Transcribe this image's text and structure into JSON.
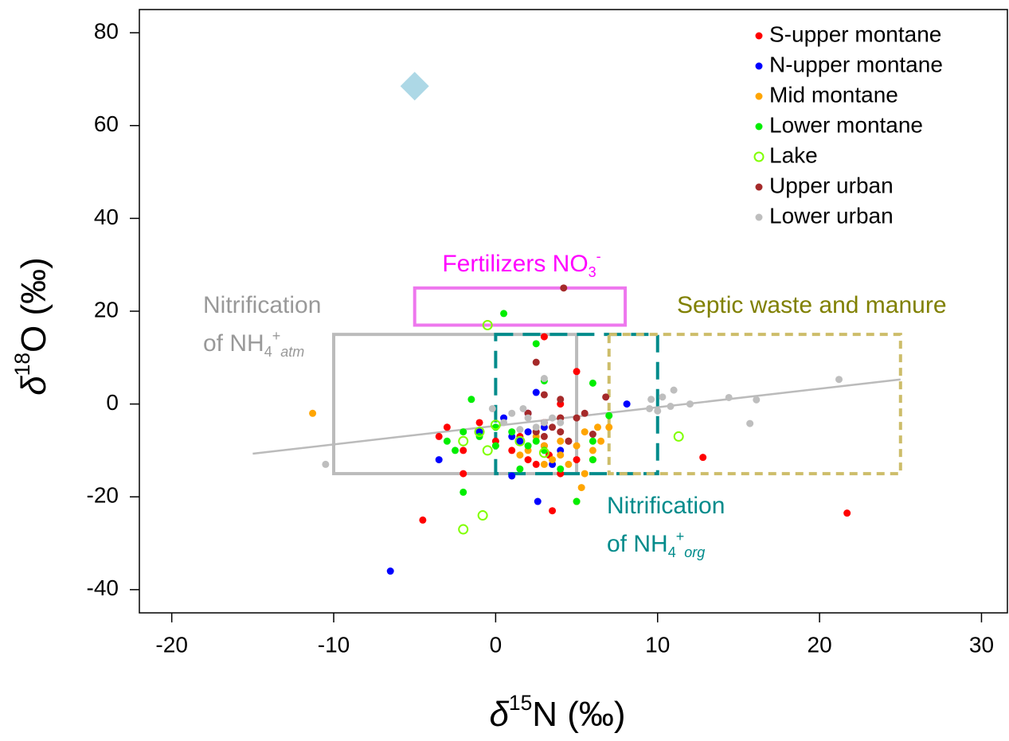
{
  "chart_data": {
    "type": "scatter",
    "x_label": [
      {
        "t": "δ",
        "style": "italic"
      },
      {
        "t": "15",
        "style": "sup"
      },
      {
        "t": "N (‰)"
      }
    ],
    "y_label": [
      {
        "t": "δ",
        "style": "italic"
      },
      {
        "t": "18",
        "style": "sup"
      },
      {
        "t": "O (‰)"
      }
    ],
    "xlim": [
      -22,
      31.6
    ],
    "ylim": [
      -45,
      85
    ],
    "xticks": [
      -20,
      -10,
      0,
      10,
      20,
      30
    ],
    "yticks": [
      -40,
      -20,
      0,
      20,
      40,
      60,
      80
    ],
    "legend": "top-right",
    "series": [
      {
        "name": "S-upper montane",
        "color": "#ff0000",
        "marker": "filled",
        "x": [
          -4.5,
          21.7,
          12.8,
          3,
          5,
          2.5,
          3.5,
          -2,
          -3.5,
          -3,
          -1,
          0,
          1,
          2,
          3,
          4,
          4.5,
          3,
          2,
          4,
          1.5,
          -2,
          3.3,
          5,
          4
        ],
        "values": [
          -25,
          -23.5,
          -11.5,
          14.5,
          7,
          -13,
          -23,
          -15,
          -7,
          -5,
          -4,
          -8,
          -10,
          -12,
          -9,
          -15,
          -8,
          -4,
          -2,
          0,
          -7,
          -10,
          -11,
          -12,
          -3
        ]
      },
      {
        "name": "N-upper montane",
        "color": "#0000ff",
        "marker": "filled",
        "x": [
          -6.5,
          8.1,
          -3.5,
          1,
          2,
          2.5,
          1.5,
          3,
          4,
          2,
          -1,
          0.5,
          2.6,
          1,
          3.5
        ],
        "values": [
          -36,
          0,
          -12,
          -7,
          -2,
          2.5,
          -8,
          -5,
          -10,
          -6,
          -6,
          -3,
          -21,
          -15.5,
          -13
        ]
      },
      {
        "name": "Mid montane",
        "color": "#ffa500",
        "marker": "filled",
        "x": [
          -11.3,
          5,
          5.3,
          5.5,
          6,
          6.5,
          7,
          6,
          5,
          4,
          3,
          2,
          3,
          4.5,
          5.5,
          2.5,
          3.5,
          6.3,
          1.5,
          4
        ],
        "values": [
          -2,
          -21,
          -18,
          -15,
          -12,
          -8,
          -5,
          -10,
          -9,
          -11,
          -9,
          -10,
          -13,
          -13,
          -6,
          -7,
          -12,
          -5,
          -11,
          -8
        ]
      },
      {
        "name": "Lower montane",
        "color": "#00ee00",
        "marker": "filled",
        "x": [
          0.5,
          2.5,
          -2,
          -1.5,
          3,
          6,
          7,
          -3,
          -2,
          -1,
          0,
          1,
          2,
          3,
          4,
          5,
          6,
          -2.5,
          1.5,
          6,
          0,
          2.5
        ],
        "values": [
          19.5,
          13,
          -19,
          1,
          5,
          4.5,
          -2.5,
          -8,
          -6,
          -7,
          -5,
          -6,
          -9,
          -10,
          -14,
          -21,
          -12,
          -10,
          -14,
          -8,
          -9,
          -8
        ]
      },
      {
        "name": "Lake",
        "color": "#80ff00",
        "marker": "open",
        "x": [
          -0.5,
          -2,
          -0.8,
          11.3,
          -2,
          -1,
          0,
          3,
          1.5,
          -0.5
        ],
        "values": [
          17,
          -27,
          -24,
          -7,
          -8,
          -6,
          -4.5,
          -10.5,
          -8,
          -10
        ]
      },
      {
        "name": "Upper urban",
        "color": "#a52a2a",
        "marker": "filled",
        "x": [
          4.2,
          6.8,
          3,
          4,
          2,
          3,
          4,
          5,
          4.5,
          3.5,
          2.5,
          5.5,
          4,
          3,
          6,
          2.5
        ],
        "values": [
          25,
          1.5,
          2,
          1,
          -2,
          -4,
          -6,
          -3,
          -8,
          -5,
          -6,
          -2,
          -3,
          -7,
          -6.5,
          9
        ]
      },
      {
        "name": "Lower urban",
        "color": "#bebebe",
        "marker": "filled",
        "x": [
          -10.5,
          21.2,
          16.1,
          15.7,
          14.4,
          12,
          11,
          10.3,
          9.6,
          10,
          10.8,
          9.5,
          3,
          1.7,
          2,
          3,
          1,
          -0.2,
          4,
          2.5,
          1.5,
          0.5,
          3.5
        ],
        "values": [
          -13,
          5.3,
          0.9,
          -4.2,
          1.4,
          0,
          3,
          1.5,
          1,
          -1.5,
          -0.5,
          -1,
          5.5,
          -1,
          -3,
          -4,
          -2,
          -1,
          -4,
          -5,
          -5.5,
          -4,
          -3
        ]
      }
    ],
    "marker_point": {
      "x": -5,
      "y": 68.5,
      "color": "#add8e6",
      "shape": "diamond"
    },
    "trend_line": {
      "x": [
        -15,
        25
      ],
      "y": [
        -10.7,
        5.3
      ],
      "color": "#bbbbbb"
    },
    "regions": [
      {
        "x": [
          -10,
          5
        ],
        "y": [
          -15,
          15
        ],
        "color": "#bbbbbb",
        "dash": "solid",
        "text_color": "#999999",
        "label": [
          [
            {
              "t": "Nitrification"
            }
          ],
          [
            {
              "t": "of NH"
            },
            {
              "t": "4",
              "style": "sub"
            },
            {
              "t": "+",
              "style": "sup"
            },
            {
              "t": "atm",
              "style": "italic-sub"
            }
          ]
        ]
      },
      {
        "x": [
          -5,
          8
        ],
        "y": [
          17,
          25
        ],
        "color": "#ee77ee",
        "dash": "solid",
        "text_color": "#ff00ff",
        "label": [
          [
            {
              "t": "Fertilizers NO"
            },
            {
              "t": "3",
              "style": "sub"
            },
            {
              "t": "-",
              "style": "sup"
            }
          ]
        ]
      },
      {
        "x": [
          0,
          10
        ],
        "y": [
          -15,
          15
        ],
        "color": "#008b8b",
        "dash": "long",
        "text_color": "#008b8b",
        "label": [
          [
            {
              "t": "Nitrification"
            }
          ],
          [
            {
              "t": "of NH"
            },
            {
              "t": "4",
              "style": "sub"
            },
            {
              "t": "+",
              "style": "sup"
            },
            {
              "t": "org",
              "style": "italic-sub"
            }
          ]
        ]
      },
      {
        "x": [
          7,
          25
        ],
        "y": [
          -15,
          15
        ],
        "color": "#cdbd6a",
        "dash": "short",
        "text_color": "#808000",
        "label": [
          [
            {
              "t": "Septic waste and manure"
            }
          ]
        ]
      }
    ]
  }
}
